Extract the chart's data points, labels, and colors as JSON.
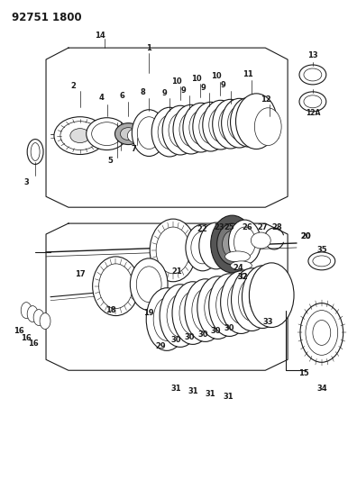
{
  "title": "92751 1800",
  "bg_color": "#ffffff",
  "line_color": "#1a1a1a",
  "label_fontsize": 6.0,
  "fig_width": 3.86,
  "fig_height": 5.33,
  "dpi": 100
}
